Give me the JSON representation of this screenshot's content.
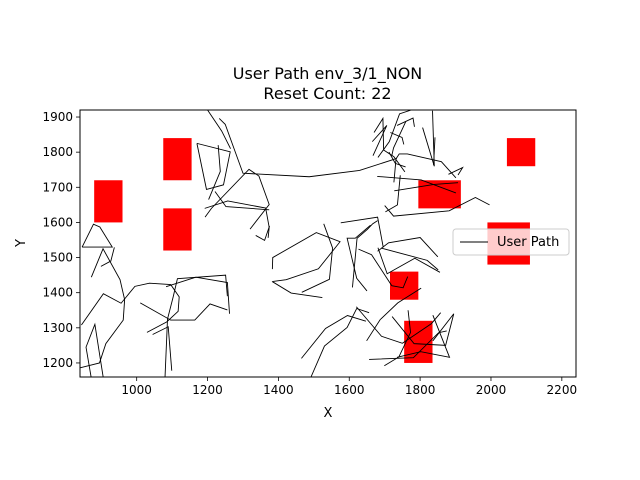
{
  "chart_data": {
    "type": "line",
    "title_lines": [
      "User Path env_3/1_NON",
      "Reset Count: 22"
    ],
    "xlabel": "X",
    "ylabel": "Y",
    "xlim": [
      840,
      2240
    ],
    "ylim": [
      1160,
      1920
    ],
    "xticks": [
      1000,
      1200,
      1400,
      1600,
      1800,
      2000,
      2200
    ],
    "yticks": [
      1200,
      1300,
      1400,
      1500,
      1600,
      1700,
      1800,
      1900
    ],
    "grid": false,
    "legend": {
      "position": "right",
      "entries": [
        {
          "name": "User Path",
          "color": "#000000"
        }
      ]
    },
    "series": [
      {
        "name": "User Path",
        "color": "#000000",
        "segments": [
          [
            [
              872,
              1156
            ],
            [
              857,
              1245
            ],
            [
              882,
              1310
            ],
            [
              906,
              1156
            ]
          ],
          [
            [
              846,
              1530
            ],
            [
              878,
              1595
            ],
            [
              896,
              1587
            ],
            [
              931,
              1530
            ],
            [
              846,
              1530
            ]
          ],
          [
            [
              937,
              1529
            ],
            [
              927,
              1490
            ],
            [
              899,
              1475
            ]
          ],
          [
            [
              872,
              1444
            ],
            [
              905,
              1525
            ],
            [
              953,
              1437
            ],
            [
              966,
              1380
            ],
            [
              962,
              1322
            ],
            [
              913,
              1255
            ],
            [
              895,
              1200
            ],
            [
              840,
              1186
            ]
          ],
          [
            [
              844,
              1308
            ],
            [
              906,
              1397
            ],
            [
              956,
              1370
            ],
            [
              995,
              1418
            ],
            [
              1036,
              1427
            ],
            [
              1096,
              1423
            ],
            [
              1120,
              1388
            ],
            [
              1117,
              1347
            ],
            [
              1085,
              1317
            ],
            [
              1029,
              1287
            ]
          ],
          [
            [
              1010,
              1371
            ],
            [
              1096,
              1322
            ],
            [
              1164,
              1322
            ],
            [
              1207,
              1368
            ],
            [
              1256,
              1351
            ]
          ],
          [
            [
              1083,
              1417
            ],
            [
              1167,
              1444
            ],
            [
              1256,
              1429
            ],
            [
              1262,
              1340
            ]
          ],
          [
            [
              1045,
              1281
            ],
            [
              1089,
              1303
            ],
            [
              1099,
              1178
            ]
          ],
          [
            [
              1080,
              1160
            ],
            [
              1087,
              1325
            ],
            [
              1103,
              1388
            ],
            [
              1115,
              1440
            ],
            [
              1251,
              1450
            ],
            [
              1256,
              1390
            ]
          ],
          [
            [
              1170,
              1825
            ],
            [
              1197,
              1694
            ],
            [
              1245,
              1707
            ],
            [
              1264,
              1801
            ],
            [
              1170,
              1825
            ]
          ],
          [
            [
              1221,
              1688
            ],
            [
              1252,
              1645
            ],
            [
              1374,
              1636
            ]
          ],
          [
            [
              1192,
              1640
            ],
            [
              1257,
              1661
            ],
            [
              1364,
              1641
            ],
            [
              1374,
              1586
            ],
            [
              1371,
              1556
            ]
          ],
          [
            [
              1336,
              1563
            ],
            [
              1361,
              1549
            ],
            [
              1375,
              1590
            ]
          ],
          [
            [
              1320,
              1581
            ],
            [
              1374,
              1651
            ],
            [
              1345,
              1732
            ],
            [
              1317,
              1751
            ],
            [
              1211,
              1640
            ],
            [
              1193,
              1615
            ]
          ],
          [
            [
              1203,
              1665
            ],
            [
              1236,
              1745
            ],
            [
              1230,
              1820
            ]
          ],
          [
            [
              1200,
              1920
            ],
            [
              1240,
              1860
            ],
            [
              1265,
              1810
            ]
          ],
          [
            [
              1233,
              1896
            ],
            [
              1250,
              1879
            ],
            [
              1300,
              1740
            ],
            [
              1487,
              1730
            ],
            [
              1629,
              1748
            ],
            [
              1734,
              1782
            ]
          ],
          [
            [
              1383,
              1467
            ],
            [
              1384,
              1500
            ],
            [
              1507,
              1571
            ],
            [
              1574,
              1545
            ],
            [
              1513,
              1468
            ],
            [
              1422,
              1437
            ],
            [
              1385,
              1432
            ]
          ],
          [
            [
              1382,
              1432
            ],
            [
              1436,
              1399
            ],
            [
              1524,
              1386
            ]
          ],
          [
            [
              1528,
              1596
            ],
            [
              1553,
              1527
            ],
            [
              1544,
              1438
            ],
            [
              1466,
              1401
            ]
          ],
          [
            [
              1492,
              1160
            ],
            [
              1530,
              1248
            ],
            [
              1594,
              1301
            ],
            [
              1621,
              1355
            ],
            [
              1656,
              1343
            ]
          ],
          [
            [
              1647,
              1319
            ],
            [
              1595,
              1335
            ],
            [
              1533,
              1298
            ],
            [
              1465,
              1213
            ]
          ],
          [
            [
              1660,
              1592
            ],
            [
              1617,
              1555
            ],
            [
              1594,
              1555
            ],
            [
              1621,
              1441
            ],
            [
              1650,
              1405
            ]
          ],
          [
            [
              1609,
              1415
            ],
            [
              1622,
              1555
            ],
            [
              1651,
              1580
            ],
            [
              1666,
              1596
            ],
            [
              1680,
              1605
            ]
          ],
          [
            [
              1576,
              1599
            ],
            [
              1680,
              1615
            ],
            [
              1696,
              1529
            ]
          ],
          [
            [
              1681,
              1528
            ],
            [
              1707,
              1454
            ],
            [
              1785,
              1498
            ],
            [
              1856,
              1458
            ]
          ],
          [
            [
              1690,
              1527
            ],
            [
              1820,
              1492
            ],
            [
              1851,
              1465
            ]
          ],
          [
            [
              1626,
              1524
            ],
            [
              1663,
              1508
            ],
            [
              1720,
              1420
            ],
            [
              1752,
              1414
            ],
            [
              1765,
              1446
            ]
          ],
          [
            [
              1680,
              1518
            ],
            [
              1711,
              1542
            ],
            [
              1800,
              1557
            ],
            [
              1850,
              1502
            ]
          ],
          [
            [
              1620,
              1360
            ],
            [
              1691,
              1276
            ],
            [
              1750,
              1256
            ],
            [
              1832,
              1312
            ],
            [
              1858,
              1343
            ]
          ],
          [
            [
              1721,
              1332
            ],
            [
              1783,
              1255
            ],
            [
              1872,
              1250
            ],
            [
              1895,
              1340
            ],
            [
              1836,
              1263
            ]
          ],
          [
            [
              1699,
              1192
            ],
            [
              1740,
              1217
            ],
            [
              1773,
              1287
            ],
            [
              1766,
              1350
            ]
          ],
          [
            [
              1735,
              1216
            ],
            [
              1802,
              1232
            ],
            [
              1883,
              1216
            ],
            [
              1836,
              1336
            ]
          ],
          [
            [
              1656,
              1210
            ],
            [
              1781,
              1215
            ],
            [
              1852,
              1286
            ],
            [
              1875,
              1291
            ]
          ],
          [
            [
              1649,
              1263
            ],
            [
              1687,
              1323
            ],
            [
              1737,
              1371
            ],
            [
              1803,
              1413
            ]
          ],
          [
            [
              1670,
              1856
            ],
            [
              1695,
              1896
            ],
            [
              1697,
              1806
            ],
            [
              1726,
              1787
            ],
            [
              1757,
              1744
            ]
          ],
          [
            [
              1712,
              1800
            ],
            [
              1730,
              1768
            ],
            [
              1759,
              1758
            ]
          ],
          [
            [
              1720,
              1790
            ],
            [
              1725,
              1812
            ],
            [
              1760,
              1888
            ]
          ],
          [
            [
              1716,
              1856
            ],
            [
              1749,
              1842
            ],
            [
              1754,
              1822
            ]
          ],
          [
            [
              1681,
              1785
            ],
            [
              1713,
              1830
            ],
            [
              1742,
              1909
            ],
            [
              1775,
              1920
            ]
          ],
          [
            [
              1735,
              1876
            ],
            [
              1780,
              1897
            ],
            [
              1784,
              1872
            ]
          ],
          [
            [
              1679,
              1731
            ],
            [
              1803,
              1721
            ],
            [
              1901,
              1684
            ]
          ],
          [
            [
              1727,
              1690
            ],
            [
              1839,
              1708
            ],
            [
              1907,
              1713
            ]
          ],
          [
            [
              1700,
              1648
            ],
            [
              1725,
              1618
            ],
            [
              1882,
              1633
            ],
            [
              1956,
              1671
            ],
            [
              1996,
              1650
            ]
          ],
          [
            [
              1726,
              1714
            ],
            [
              1732,
              1781
            ],
            [
              1741,
              1795
            ],
            [
              1764,
              1795
            ],
            [
              1860,
              1773
            ],
            [
              1901,
              1727
            ]
          ],
          [
            [
              1880,
              1737
            ],
            [
              1920,
              1756
            ],
            [
              1907,
              1735
            ]
          ],
          [
            [
              1702,
              1630
            ],
            [
              1736,
              1650
            ],
            [
              1744,
              1734
            ]
          ],
          [
            [
              1807,
              1870
            ],
            [
              1840,
              1760
            ],
            [
              1835,
              1918
            ]
          ],
          [
            [
              1838,
              1763
            ],
            [
              1842,
              1842
            ]
          ],
          [
            [
              1665,
              1830
            ],
            [
              1706,
              1876
            ],
            [
              1667,
              1790
            ]
          ]
        ]
      }
    ],
    "obstacles": [
      {
        "x": 2045,
        "y": 1760,
        "w": 80,
        "h": 80
      },
      {
        "x": 1795,
        "y": 1640,
        "w": 120,
        "h": 80
      },
      {
        "x": 1990,
        "y": 1480,
        "w": 120,
        "h": 120
      },
      {
        "x": 1715,
        "y": 1380,
        "w": 80,
        "h": 80
      },
      {
        "x": 1755,
        "y": 1200,
        "w": 80,
        "h": 120
      },
      {
        "x": 1075,
        "y": 1720,
        "w": 80,
        "h": 120
      },
      {
        "x": 880,
        "y": 1600,
        "w": 80,
        "h": 120
      },
      {
        "x": 1075,
        "y": 1520,
        "w": 80,
        "h": 120
      }
    ],
    "obstacle_color": "#ff0000"
  }
}
